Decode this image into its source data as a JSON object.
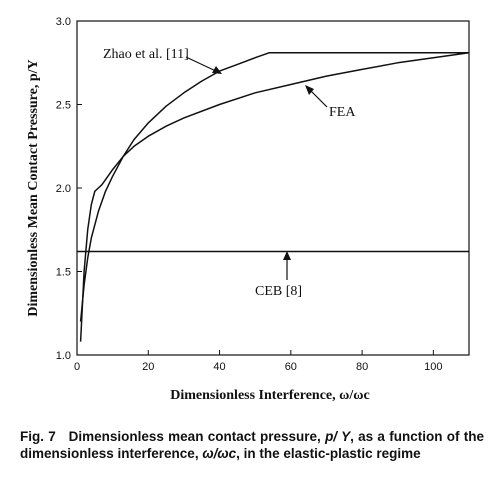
{
  "chart_data": {
    "type": "line",
    "xlabel": "Dimensionless Interference, ω/ωc",
    "ylabel": "Dimensionless Mean Contact Pressure, p/Y",
    "xlim": [
      0,
      110
    ],
    "ylim": [
      1.0,
      3.0
    ],
    "xticks": [
      0,
      20,
      40,
      60,
      80,
      100
    ],
    "yticks": [
      1.0,
      1.5,
      2.0,
      2.5,
      3.0
    ],
    "ytick_labels": [
      "1.0",
      "1.5",
      "2.0",
      "2.5",
      "3.0"
    ],
    "grid": false,
    "series": [
      {
        "name": "Zhao et al. [11]",
        "x": [
          1,
          2,
          3,
          4,
          6,
          8,
          10,
          13,
          16,
          20,
          25,
          30,
          35,
          40,
          45,
          50,
          54,
          60,
          70,
          80,
          90,
          100,
          110
        ],
        "y": [
          1.2,
          1.42,
          1.58,
          1.7,
          1.86,
          1.98,
          2.07,
          2.19,
          2.29,
          2.39,
          2.49,
          2.57,
          2.64,
          2.7,
          2.74,
          2.78,
          2.81,
          2.81,
          2.81,
          2.81,
          2.81,
          2.81,
          2.81
        ]
      },
      {
        "name": "FEA",
        "x": [
          1,
          2,
          3,
          4,
          5,
          6,
          7,
          8,
          10,
          13,
          16,
          20,
          25,
          30,
          40,
          50,
          60,
          70,
          80,
          90,
          100,
          110
        ],
        "y": [
          1.08,
          1.5,
          1.75,
          1.9,
          1.98,
          2.0,
          2.02,
          2.05,
          2.11,
          2.19,
          2.25,
          2.31,
          2.37,
          2.42,
          2.5,
          2.57,
          2.62,
          2.67,
          2.71,
          2.75,
          2.78,
          2.81
        ]
      },
      {
        "name": "CEB [8]",
        "x": [
          0,
          110
        ],
        "y": [
          1.62,
          1.62
        ]
      }
    ],
    "annotations": [
      "Zhao et al. [11]",
      "FEA",
      "CEB [8]"
    ]
  },
  "caption": {
    "fig_label": "Fig. 7",
    "text_1": "Dimensionless mean contact pressure, ",
    "var_1": "p/ Y",
    "text_2": ", as a function of the dimensionless interference, ",
    "var_2": "ω/ωc",
    "text_3": ", in the elastic-plastic regime"
  }
}
